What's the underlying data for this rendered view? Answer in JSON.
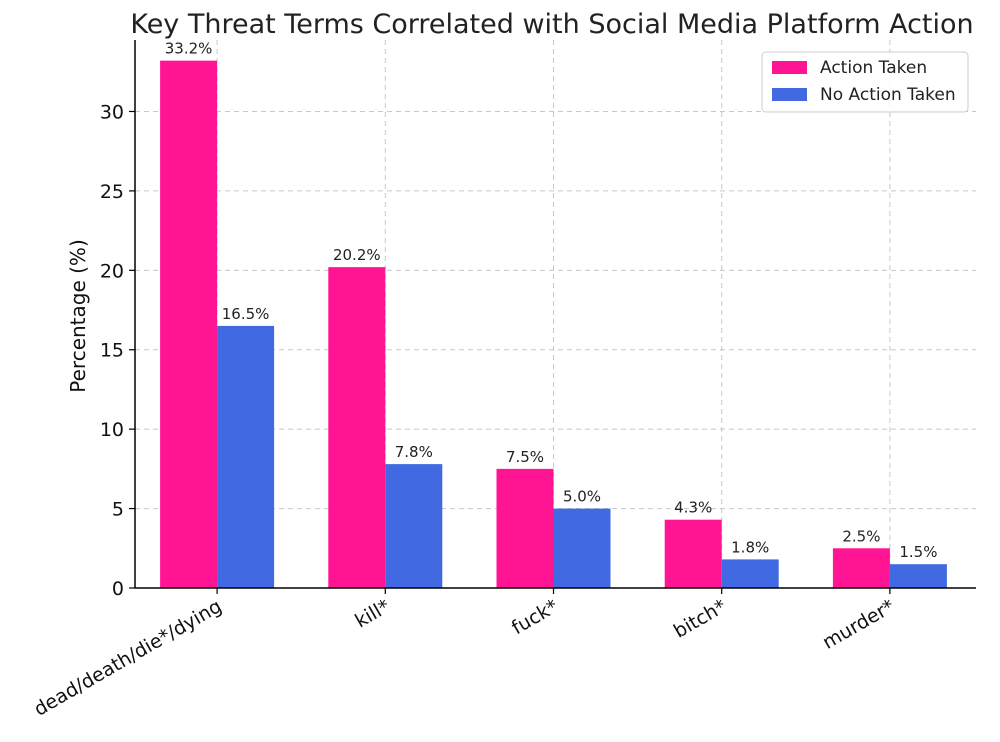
{
  "chart_data": {
    "type": "bar",
    "title": "Key Threat Terms Correlated with Social Media Platform Action",
    "xlabel": "",
    "ylabel": "Percentage (%)",
    "ylim": [
      0,
      34.5
    ],
    "yticks": [
      0,
      5,
      10,
      15,
      20,
      25,
      30
    ],
    "grid": true,
    "legend_position": "top-right",
    "categories": [
      "dead/death/die*/dying",
      "kill*",
      "fuck*",
      "bitch*",
      "murder*"
    ],
    "series": [
      {
        "name": "Action Taken",
        "color": "#ff1493",
        "values": [
          33.2,
          20.2,
          7.5,
          4.3,
          2.5
        ],
        "labels": [
          "33.2%",
          "20.2%",
          "7.5%",
          "4.3%",
          "2.5%"
        ]
      },
      {
        "name": "No Action Taken",
        "color": "#4169e1",
        "values": [
          16.5,
          7.8,
          5.0,
          1.8,
          1.5
        ],
        "labels": [
          "16.5%",
          "7.8%",
          "5.0%",
          "1.8%",
          "1.5%"
        ]
      }
    ]
  }
}
